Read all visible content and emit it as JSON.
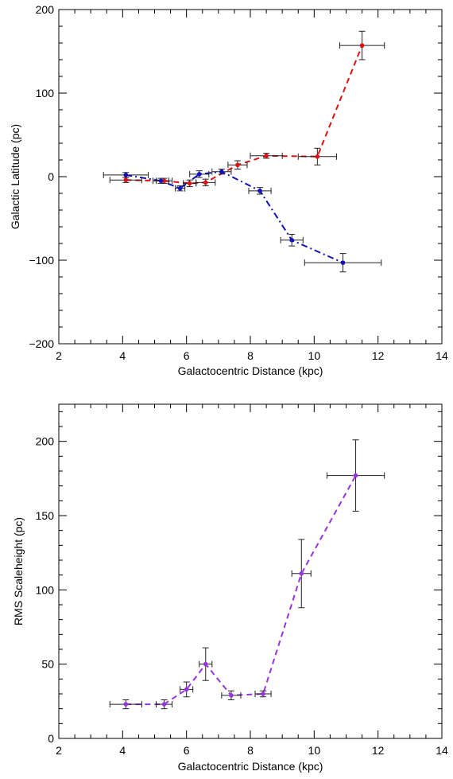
{
  "chart_data": [
    {
      "type": "line",
      "xlabel": "Galactocentric Distance (kpc)",
      "ylabel": "Galactic Latitude (pc)",
      "xlim": [
        2,
        14
      ],
      "ylim": [
        -200,
        200
      ],
      "xticks": [
        "2",
        "4",
        "6",
        "8",
        "10",
        "12",
        "14"
      ],
      "yticks": [
        "200",
        "100",
        "0",
        "−100",
        "−200"
      ],
      "grid": false,
      "series": [
        {
          "color": "#dd1111",
          "style": "dashed",
          "x": [
            4.1,
            5.3,
            6.1,
            6.6,
            7.6,
            8.5,
            10.1,
            11.5
          ],
          "y": [
            -4,
            -5,
            -8,
            -7,
            14,
            25,
            24,
            157
          ],
          "xerr": [
            0.5,
            0.25,
            0.2,
            0.3,
            0.3,
            0.5,
            0.6,
            0.7
          ],
          "yerr": [
            3,
            3,
            4,
            4,
            5,
            3,
            10,
            17
          ]
        },
        {
          "color": "#1111bb",
          "style": "dashdot",
          "x": [
            4.1,
            5.2,
            5.8,
            6.4,
            7.1,
            8.3,
            9.3,
            10.9
          ],
          "y": [
            2,
            -5,
            -14,
            3,
            6,
            -17,
            -76,
            -103
          ],
          "xerr": [
            0.7,
            0.25,
            0.15,
            0.3,
            0.3,
            0.35,
            0.35,
            1.2
          ],
          "yerr": [
            3,
            3,
            3,
            4,
            3,
            4,
            7,
            11
          ]
        }
      ]
    },
    {
      "type": "line",
      "xlabel": "Galactocentric Distance (kpc)",
      "ylabel": "RMS Scaleheight (pc)",
      "xlim": [
        2,
        14
      ],
      "ylim": [
        0,
        225
      ],
      "xticks": [
        "2",
        "4",
        "6",
        "8",
        "10",
        "12",
        "14"
      ],
      "yticks": [
        "0",
        "50",
        "100",
        "150",
        "200"
      ],
      "grid": false,
      "series": [
        {
          "color": "#9933dd",
          "style": "dashed",
          "x": [
            4.1,
            5.3,
            6.0,
            6.6,
            7.4,
            8.4,
            9.6,
            11.3
          ],
          "y": [
            23,
            23,
            33,
            50,
            29,
            30,
            111,
            177
          ],
          "xerr": [
            0.5,
            0.25,
            0.2,
            0.2,
            0.3,
            0.25,
            0.3,
            0.9
          ],
          "yerr": [
            3,
            3,
            5,
            11,
            3,
            2,
            23,
            24
          ]
        }
      ]
    }
  ]
}
